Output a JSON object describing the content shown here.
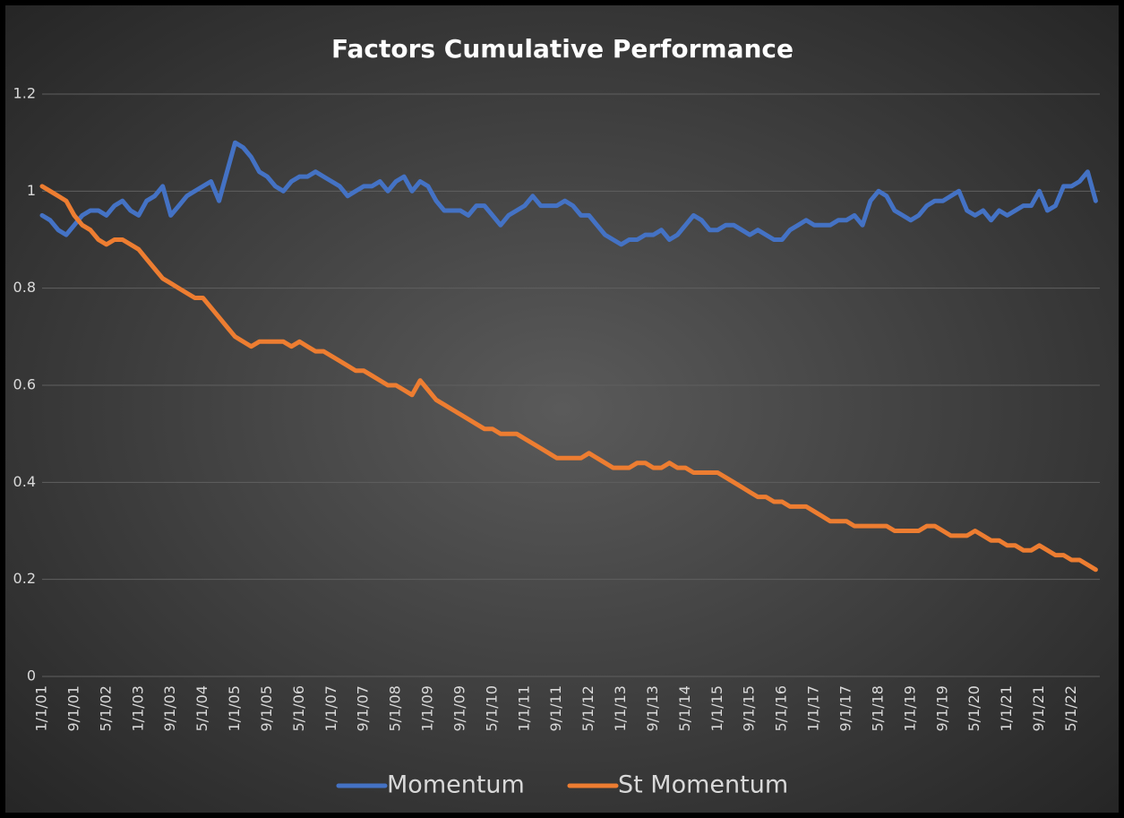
{
  "chart_data": {
    "type": "line",
    "title": "Factors Cumulative Performance",
    "categories": [
      "1/1/01",
      null,
      null,
      null,
      "9/1/01",
      null,
      null,
      null,
      "5/1/02",
      null,
      null,
      null,
      "1/1/03",
      null,
      null,
      null,
      "9/1/03",
      null,
      null,
      null,
      "5/1/04",
      null,
      null,
      null,
      "1/1/05",
      null,
      null,
      null,
      "9/1/05",
      null,
      null,
      null,
      "5/1/06",
      null,
      null,
      null,
      "1/1/07",
      null,
      null,
      null,
      "9/1/07",
      null,
      null,
      null,
      "5/1/08",
      null,
      null,
      null,
      "1/1/09",
      null,
      null,
      null,
      "9/1/09",
      null,
      null,
      null,
      "5/1/10",
      null,
      null,
      null,
      "1/1/11",
      null,
      null,
      null,
      "9/1/11",
      null,
      null,
      null,
      "5/1/12",
      null,
      null,
      null,
      "1/1/13",
      null,
      null,
      null,
      "9/1/13",
      null,
      null,
      null,
      "5/1/14",
      null,
      null,
      null,
      "1/1/15",
      null,
      null,
      null,
      "9/1/15",
      null,
      null,
      null,
      "5/1/16",
      null,
      null,
      null,
      "1/1/17",
      null,
      null,
      null,
      "9/1/17",
      null,
      null,
      null,
      "5/1/18",
      null,
      null,
      null,
      "1/1/19",
      null,
      null,
      null,
      "9/1/19",
      null,
      null,
      null,
      "5/1/20",
      null,
      null,
      null,
      "1/1/21",
      null,
      null,
      null,
      "9/1/21",
      null,
      null,
      null,
      "5/1/22",
      null,
      null,
      null
    ],
    "series": [
      {
        "name": "Momentum",
        "color": "#4472c4",
        "values": [
          0.95,
          0.94,
          0.92,
          0.91,
          0.93,
          0.95,
          0.96,
          0.96,
          0.95,
          0.97,
          0.98,
          0.96,
          0.95,
          0.98,
          0.99,
          1.01,
          0.95,
          0.97,
          0.99,
          1.0,
          1.01,
          1.02,
          0.98,
          1.04,
          1.1,
          1.09,
          1.07,
          1.04,
          1.03,
          1.01,
          1.0,
          1.02,
          1.03,
          1.03,
          1.04,
          1.03,
          1.02,
          1.01,
          0.99,
          1.0,
          1.01,
          1.01,
          1.02,
          1.0,
          1.02,
          1.03,
          1.0,
          1.02,
          1.01,
          0.98,
          0.96,
          0.96,
          0.96,
          0.95,
          0.97,
          0.97,
          0.95,
          0.93,
          0.95,
          0.96,
          0.97,
          0.99,
          0.97,
          0.97,
          0.97,
          0.98,
          0.97,
          0.95,
          0.95,
          0.93,
          0.91,
          0.9,
          0.89,
          0.9,
          0.9,
          0.91,
          0.91,
          0.92,
          0.9,
          0.91,
          0.93,
          0.95,
          0.94,
          0.92,
          0.92,
          0.93,
          0.93,
          0.92,
          0.91,
          0.92,
          0.91,
          0.9,
          0.9,
          0.92,
          0.93,
          0.94,
          0.93,
          0.93,
          0.93,
          0.94,
          0.94,
          0.95,
          0.93,
          0.98,
          1.0,
          0.99,
          0.96,
          0.95,
          0.94,
          0.95,
          0.97,
          0.98,
          0.98,
          0.99,
          1.0,
          0.96,
          0.95,
          0.96,
          0.94,
          0.96,
          0.95,
          0.96,
          0.97,
          0.97,
          1.0,
          0.96,
          0.97,
          1.01,
          1.01,
          1.02,
          1.04,
          0.98
        ]
      },
      {
        "name": "St Momentum",
        "color": "#ed7d31",
        "values": [
          1.01,
          1.0,
          0.99,
          0.98,
          0.95,
          0.93,
          0.92,
          0.9,
          0.89,
          0.9,
          0.9,
          0.89,
          0.88,
          0.86,
          0.84,
          0.82,
          0.81,
          0.8,
          0.79,
          0.78,
          0.78,
          0.76,
          0.74,
          0.72,
          0.7,
          0.69,
          0.68,
          0.69,
          0.69,
          0.69,
          0.69,
          0.68,
          0.69,
          0.68,
          0.67,
          0.67,
          0.66,
          0.65,
          0.64,
          0.63,
          0.63,
          0.62,
          0.61,
          0.6,
          0.6,
          0.59,
          0.58,
          0.61,
          0.59,
          0.57,
          0.56,
          0.55,
          0.54,
          0.53,
          0.52,
          0.51,
          0.51,
          0.5,
          0.5,
          0.5,
          0.49,
          0.48,
          0.47,
          0.46,
          0.45,
          0.45,
          0.45,
          0.45,
          0.46,
          0.45,
          0.44,
          0.43,
          0.43,
          0.43,
          0.44,
          0.44,
          0.43,
          0.43,
          0.44,
          0.43,
          0.43,
          0.42,
          0.42,
          0.42,
          0.42,
          0.41,
          0.4,
          0.39,
          0.38,
          0.37,
          0.37,
          0.36,
          0.36,
          0.35,
          0.35,
          0.35,
          0.34,
          0.33,
          0.32,
          0.32,
          0.32,
          0.31,
          0.31,
          0.31,
          0.31,
          0.31,
          0.3,
          0.3,
          0.3,
          0.3,
          0.31,
          0.31,
          0.3,
          0.29,
          0.29,
          0.29,
          0.3,
          0.29,
          0.28,
          0.28,
          0.27,
          0.27,
          0.26,
          0.26,
          0.27,
          0.26,
          0.25,
          0.25,
          0.24,
          0.24,
          0.23,
          0.22
        ]
      }
    ],
    "ylim": [
      0,
      1.2
    ],
    "yticks": [
      0,
      0.2,
      0.4,
      0.6,
      0.8,
      1,
      1.2
    ],
    "grid": true,
    "legend": "bottom"
  }
}
